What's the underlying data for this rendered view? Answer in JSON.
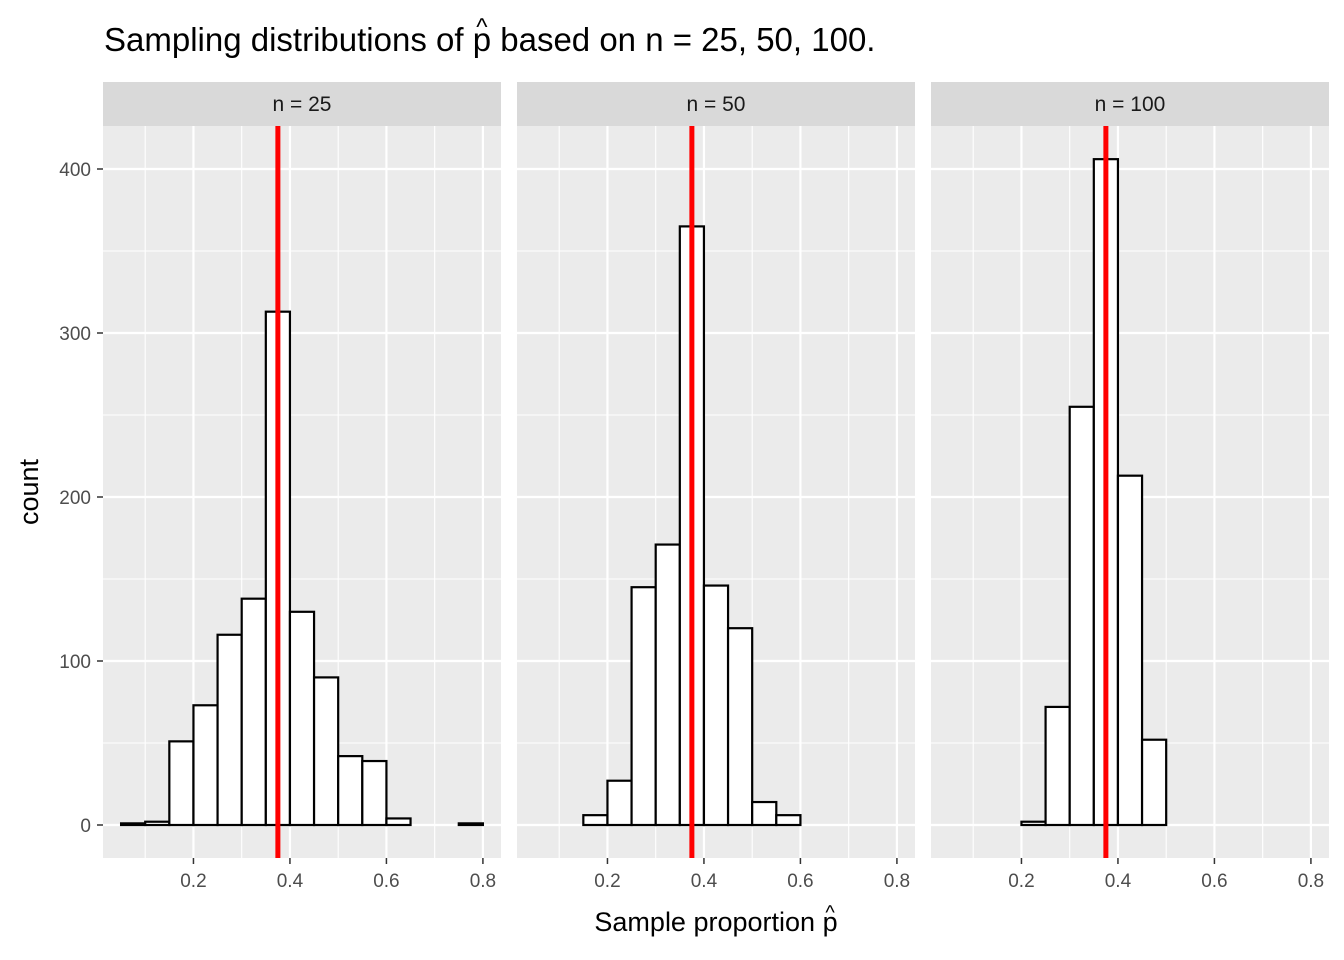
{
  "chart_data": {
    "type": "bar",
    "title_prefix": "Sampling distributions of",
    "title_symbol": "p",
    "title_hat": "^",
    "title_suffix": "based on n = 25, 50, 100.",
    "xlabel": "Sample proportion",
    "xlabel_symbol": "p",
    "xlabel_hat": "^",
    "ylabel": "count",
    "xlim": [
      0.05,
      0.8
    ],
    "ylim": [
      0,
      430
    ],
    "x_ticks": [
      0.2,
      0.4,
      0.6,
      0.8
    ],
    "x_tick_labels": [
      "0.2",
      "0.4",
      "0.6",
      "0.8"
    ],
    "y_ticks": [
      0,
      100,
      200,
      300,
      400
    ],
    "y_tick_labels": [
      "0",
      "100",
      "200",
      "300",
      "400"
    ],
    "bin_width": 0.05,
    "bin_starts": [
      0.05,
      0.1,
      0.15,
      0.2,
      0.25,
      0.3,
      0.35,
      0.4,
      0.45,
      0.5,
      0.55,
      0.6,
      0.65,
      0.7,
      0.75
    ],
    "reference_line": {
      "x": 0.375,
      "color": "#ff0000"
    },
    "grid": true,
    "panels": [
      {
        "label": "n = 25",
        "counts": [
          1,
          2,
          51,
          73,
          116,
          138,
          313,
          130,
          90,
          42,
          39,
          4,
          0,
          0,
          1
        ]
      },
      {
        "label": "n = 50",
        "counts": [
          0,
          0,
          6,
          27,
          145,
          171,
          365,
          146,
          120,
          14,
          6,
          0,
          0,
          0,
          0
        ]
      },
      {
        "label": "n = 100",
        "counts": [
          0,
          0,
          0,
          2,
          72,
          255,
          406,
          213,
          52,
          0,
          0,
          0,
          0,
          0,
          0
        ]
      }
    ],
    "colors": {
      "panel_background": "#ebebeb",
      "strip_background": "#d9d9d9",
      "grid": "#ffffff",
      "bar_fill": "#ffffff",
      "bar_outline": "#000000"
    }
  }
}
